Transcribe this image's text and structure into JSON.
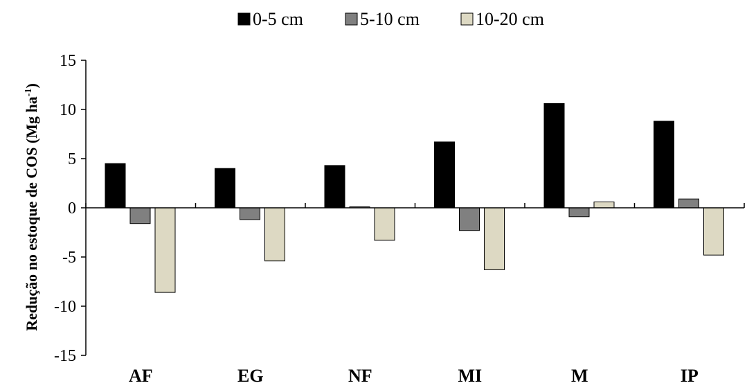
{
  "chart_data": {
    "type": "bar",
    "categories": [
      "AF",
      "EG",
      "NF",
      "MI",
      "M",
      "IP"
    ],
    "series": [
      {
        "name": "0-5 cm",
        "color": "#000000",
        "values": [
          4.5,
          4.0,
          4.3,
          6.7,
          10.6,
          8.8
        ]
      },
      {
        "name": "5-10 cm",
        "color": "#808080",
        "values": [
          -1.6,
          -1.2,
          0.1,
          -2.3,
          -0.9,
          0.9
        ]
      },
      {
        "name": "10-20 cm",
        "color": "#ddd9c3",
        "values": [
          -8.6,
          -5.4,
          -3.3,
          -6.3,
          0.6,
          -4.8
        ]
      }
    ],
    "ylabel": "Redução no estoque de COS (Mg ha-1)",
    "ylabel_parts": {
      "main": "Redução no estoque de COS (Mg ha",
      "sup": "-1",
      "end": ")"
    },
    "ylim": [
      -15,
      15
    ],
    "yticks": [
      -15,
      -10,
      -5,
      0,
      5,
      10,
      15
    ],
    "legend_position": "top-center",
    "grid": false
  }
}
